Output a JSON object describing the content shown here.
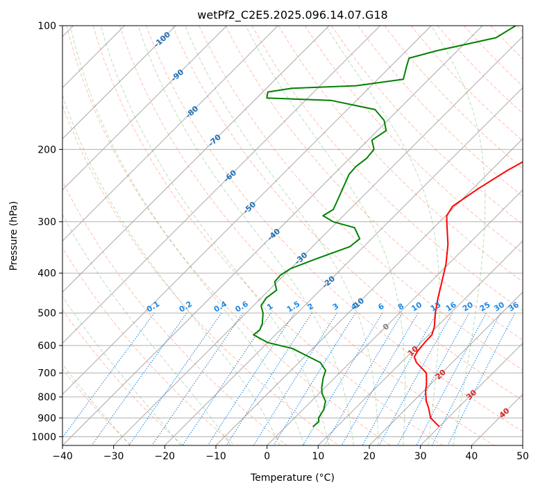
{
  "chart_data": {
    "type": "line",
    "chart_kind": "skew-T log-P diagram",
    "title": "wetPf2_C2E5.2025.096.14.07.G18",
    "xlabel": "Temperature (°C)",
    "ylabel": "Pressure (hPa)",
    "xlim": [
      -40,
      50
    ],
    "ylim": [
      1050,
      100
    ],
    "y_scale": "log",
    "x_ticks": [
      -40,
      -30,
      -20,
      -10,
      0,
      10,
      20,
      30,
      40,
      50
    ],
    "y_ticks": [
      100,
      200,
      300,
      400,
      500,
      600,
      700,
      800,
      900,
      1000
    ],
    "grid": true,
    "series": [
      {
        "role": "temperature",
        "color": "#ff0000",
        "points": [
          [
            30.0,
            945
          ],
          [
            26.6,
            900
          ],
          [
            24.2,
            850
          ],
          [
            22.5,
            820
          ],
          [
            20.4,
            775
          ],
          [
            19.8,
            760
          ],
          [
            19.2,
            745
          ],
          [
            17.0,
            700
          ],
          [
            13.0,
            660
          ],
          [
            11.5,
            640
          ],
          [
            11.0,
            620
          ],
          [
            10.7,
            590
          ],
          [
            10.6,
            565
          ],
          [
            9.5,
            540
          ],
          [
            7.0,
            500
          ],
          [
            4.6,
            460
          ],
          [
            2.5,
            425
          ],
          [
            -0.5,
            380
          ],
          [
            -4.0,
            340
          ],
          [
            -8.0,
            305
          ],
          [
            -9.8,
            290
          ],
          [
            -10.5,
            275
          ],
          [
            -9.0,
            250
          ],
          [
            -6.8,
            225
          ],
          [
            -3.5,
            200
          ],
          [
            0.7,
            180
          ],
          [
            3.0,
            170
          ],
          [
            6.5,
            160
          ],
          [
            10.7,
            150
          ],
          [
            13.6,
            140
          ],
          [
            14.8,
            130
          ],
          [
            15.0,
            120
          ],
          [
            16.0,
            112
          ],
          [
            17.0,
            105
          ],
          [
            16.8,
            100
          ]
        ]
      },
      {
        "role": "dewpoint",
        "color": "#008000",
        "points": [
          [
            5.3,
            945
          ],
          [
            5.5,
            920
          ],
          [
            4.7,
            900
          ],
          [
            4.4,
            880
          ],
          [
            4.1,
            860
          ],
          [
            2.8,
            820
          ],
          [
            0.6,
            785
          ],
          [
            -0.6,
            760
          ],
          [
            -2.2,
            720
          ],
          [
            -3.2,
            690
          ],
          [
            -5.8,
            660
          ],
          [
            -9.0,
            640
          ],
          [
            -14.0,
            610
          ],
          [
            -20.0,
            590
          ],
          [
            -24.3,
            565
          ],
          [
            -24.0,
            550
          ],
          [
            -24.8,
            530
          ],
          [
            -26.7,
            500
          ],
          [
            -28.5,
            480
          ],
          [
            -29.0,
            460
          ],
          [
            -28.5,
            440
          ],
          [
            -30.5,
            420
          ],
          [
            -30.7,
            405
          ],
          [
            -30.0,
            390
          ],
          [
            -27.0,
            370
          ],
          [
            -22.7,
            345
          ],
          [
            -22.3,
            330
          ],
          [
            -25.5,
            310
          ],
          [
            -30.8,
            300
          ],
          [
            -34.0,
            290
          ],
          [
            -33.2,
            280
          ],
          [
            -35.0,
            255
          ],
          [
            -37.0,
            230
          ],
          [
            -37.2,
            220
          ],
          [
            -36.7,
            210
          ],
          [
            -37.0,
            200
          ],
          [
            -39.2,
            190
          ],
          [
            -38.3,
            180
          ],
          [
            -40.7,
            170
          ],
          [
            -44.6,
            160
          ],
          [
            -55.0,
            152
          ],
          [
            -68.0,
            150
          ],
          [
            -69.0,
            145
          ],
          [
            -65.0,
            142
          ],
          [
            -53.0,
            140
          ],
          [
            -45.0,
            135
          ],
          [
            -47.0,
            125
          ],
          [
            -48.0,
            120
          ],
          [
            -44.0,
            115
          ],
          [
            -35.0,
            107
          ],
          [
            -33.5,
            100
          ]
        ]
      }
    ],
    "dry_adiabats": {
      "line_style": "dashed",
      "color": "#ff8060",
      "theta_C": [
        -30,
        -20,
        -10,
        0,
        10,
        20,
        30,
        40,
        50,
        60,
        70,
        80,
        90,
        100,
        110,
        120,
        130,
        140,
        150,
        160,
        170,
        180,
        190,
        200
      ]
    },
    "moist_adiabats": {
      "line_style": "dashed",
      "color": "#3aa03a",
      "start_T_at_1000_C": [
        -30,
        -20,
        -10,
        0,
        5,
        10,
        15,
        20,
        25,
        30,
        35
      ]
    },
    "mixing_ratio_lines": {
      "line_style": "dotted",
      "color": "#1e88e5",
      "values_g_kg": [
        0.1,
        0.2,
        0.4,
        0.6,
        1,
        1.5,
        2,
        3,
        4,
        6,
        8,
        10,
        13,
        16,
        20,
        25,
        30,
        36
      ],
      "labels": [
        "0.1",
        "0.2",
        "0.4",
        "0.6",
        "1",
        "1.5",
        "2",
        "3",
        "4",
        "6",
        "8",
        "10",
        "13",
        "16",
        "20",
        "25",
        "30",
        "36"
      ],
      "label_pressure": 500
    },
    "isotherm_labels": {
      "negative_color": "#1f6eb5",
      "positive_color": "#d62728",
      "zero_color": "#808080",
      "items": [
        {
          "text": "-100",
          "p": 108
        },
        {
          "text": "-90",
          "p": 132
        },
        {
          "text": "-80",
          "p": 162
        },
        {
          "text": "-70",
          "p": 190
        },
        {
          "text": "-60",
          "p": 232
        },
        {
          "text": "-50",
          "p": 277
        },
        {
          "text": "-40",
          "p": 322
        },
        {
          "text": "-30",
          "p": 368
        },
        {
          "text": "-20",
          "p": 420
        },
        {
          "text": "-10",
          "p": 475
        },
        {
          "text": "0",
          "p": 540
        },
        {
          "text": "10",
          "p": 618
        },
        {
          "text": "20",
          "p": 705
        },
        {
          "text": "30",
          "p": 790
        },
        {
          "text": "40",
          "p": 875
        }
      ]
    }
  }
}
